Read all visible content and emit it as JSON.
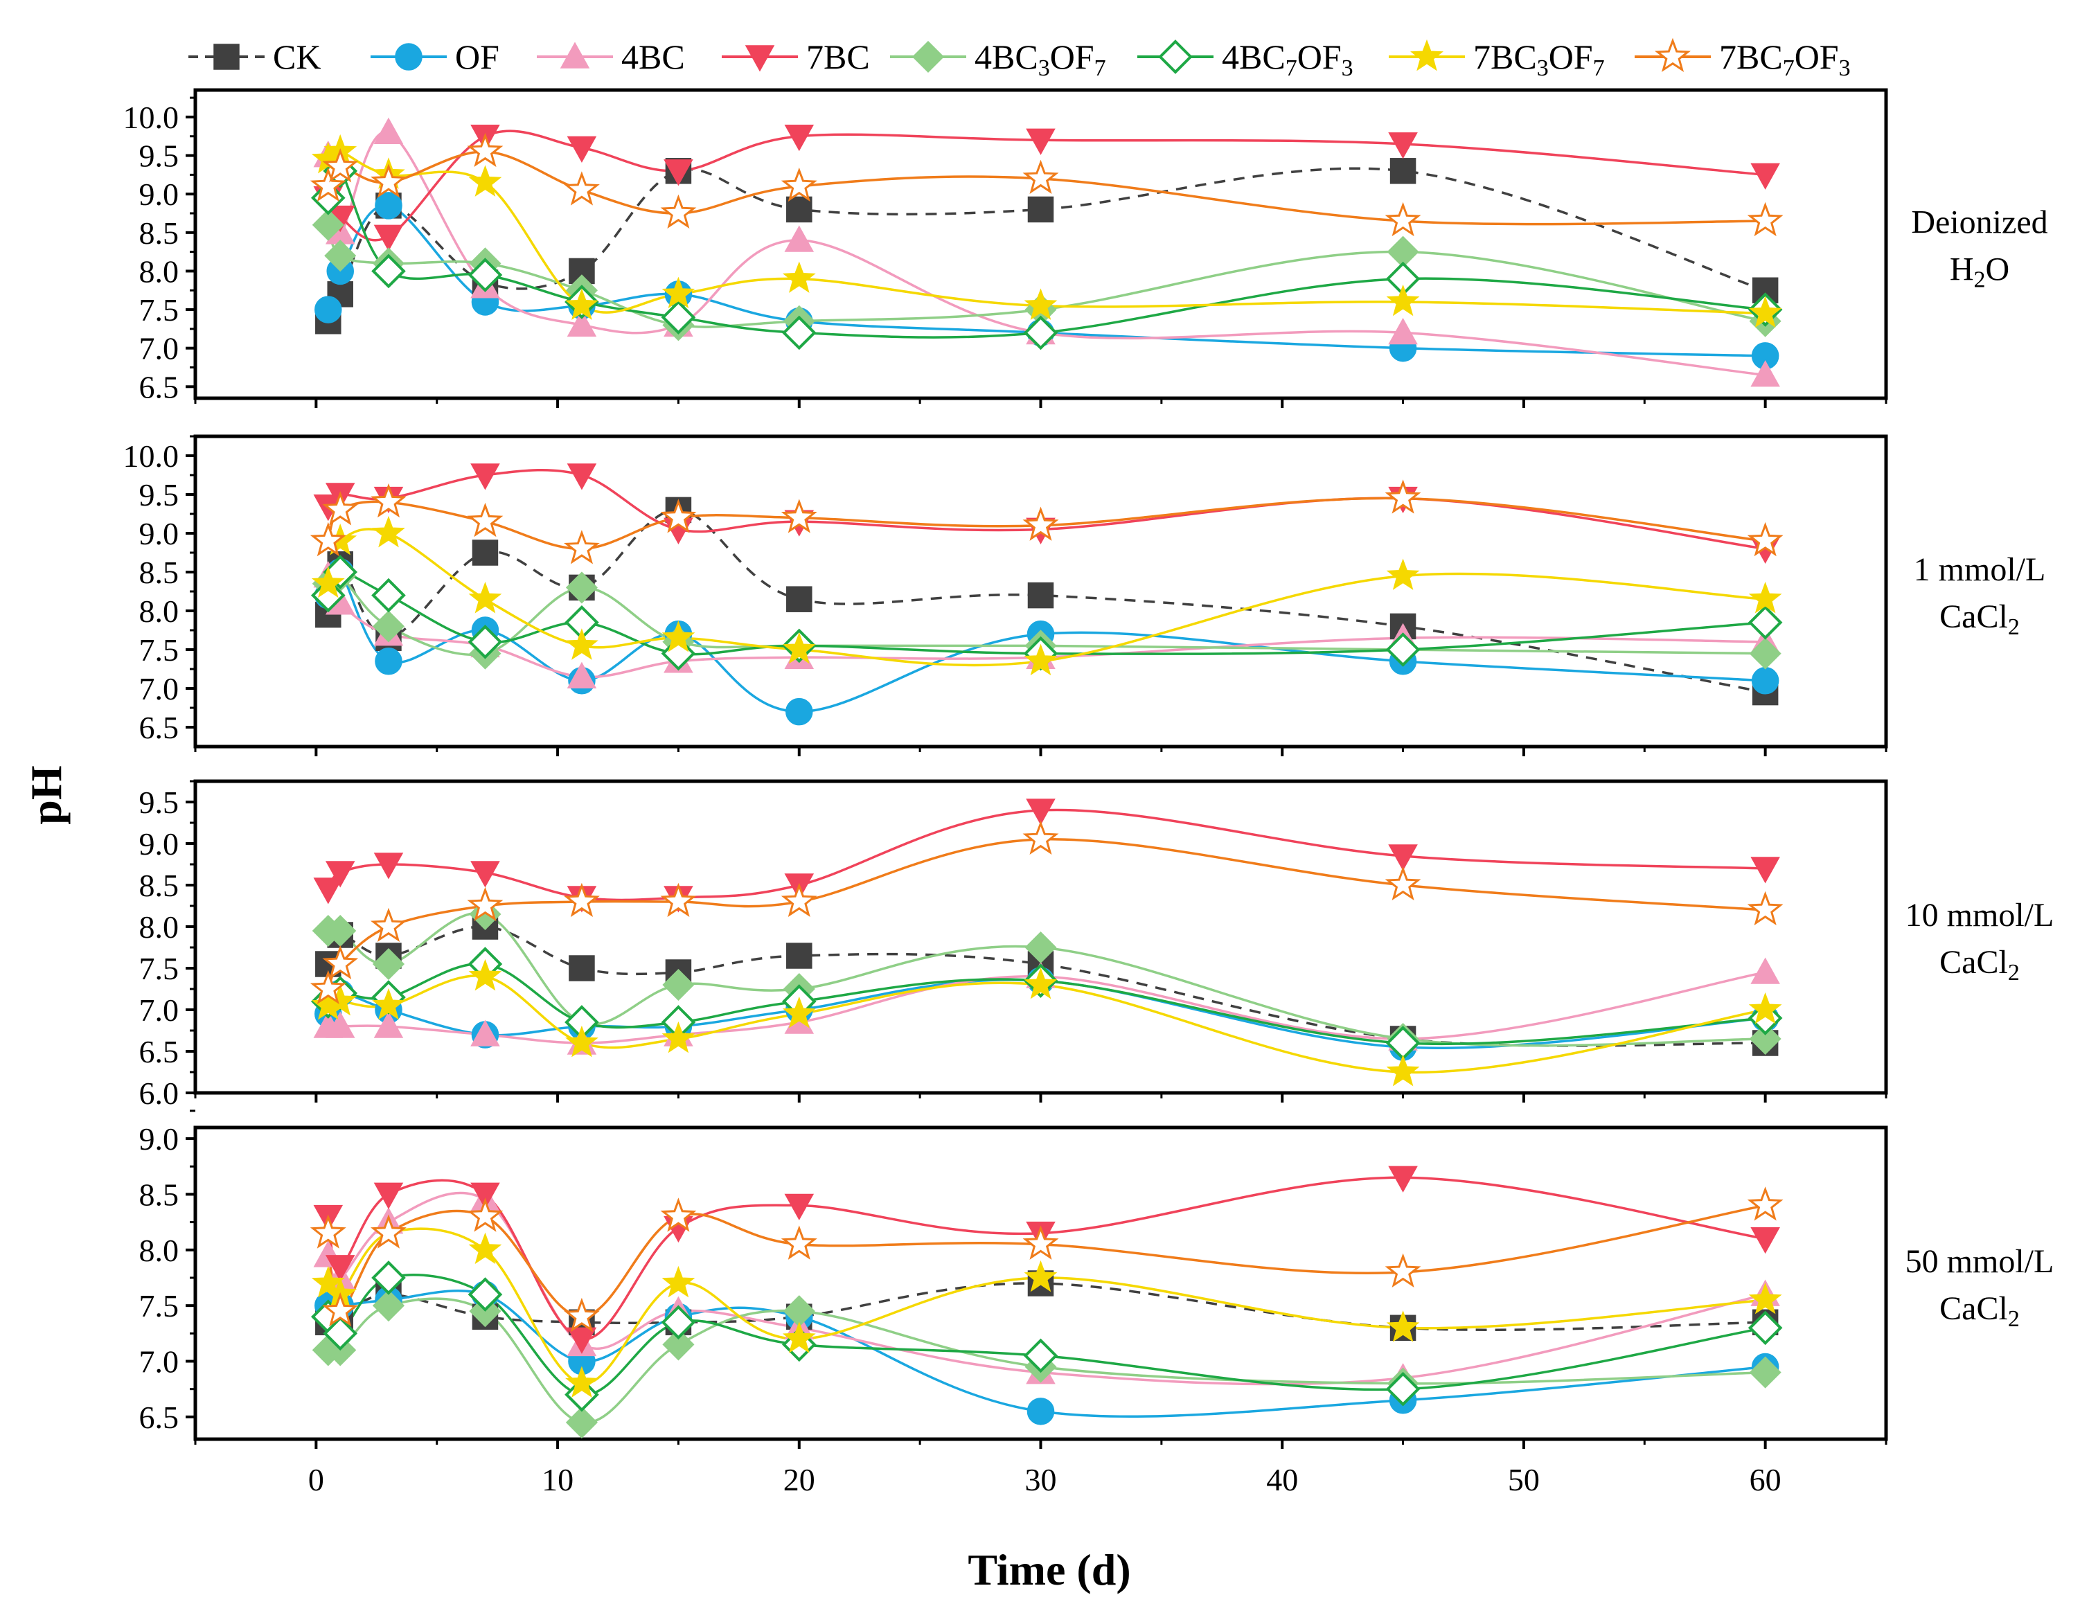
{
  "chart_data": {
    "type": "line",
    "xlabel": "Time (d)",
    "ylabel": "pH",
    "xlim": [
      -5,
      65
    ],
    "xticks": [
      0,
      10,
      20,
      30,
      40,
      50,
      60
    ],
    "x": [
      0.5,
      1,
      3,
      7,
      11,
      15,
      20,
      30,
      45,
      60
    ],
    "legend": [
      {
        "key": "CK",
        "label": "CK",
        "color": "#404040",
        "marker": "square",
        "dashed": true
      },
      {
        "key": "OF",
        "label": "OF",
        "color": "#1aa7e0",
        "marker": "circle"
      },
      {
        "key": "4BC",
        "label": "4BC",
        "color": "#f29bbd",
        "marker": "triangle-up"
      },
      {
        "key": "7BC",
        "label": "7BC",
        "color": "#f0435a",
        "marker": "triangle-down"
      },
      {
        "key": "4BC3OF7",
        "label": "4BC",
        "sub1": "3",
        "mid": "OF",
        "sub2": "7",
        "color": "#8fcf87",
        "marker": "diamond"
      },
      {
        "key": "4BC7OF3",
        "label": "4BC",
        "sub1": "7",
        "mid": "OF",
        "sub2": "3",
        "color": "#1ea845",
        "marker": "diamond-open"
      },
      {
        "key": "7BC3OF7",
        "label": "7BC",
        "sub1": "3",
        "mid": "OF",
        "sub2": "7",
        "color": "#f5d800",
        "marker": "star"
      },
      {
        "key": "7BC7OF3",
        "label": "7BC",
        "sub1": "7",
        "mid": "OF",
        "sub2": "3",
        "color": "#f07c1a",
        "marker": "star-open"
      }
    ],
    "panels": [
      {
        "label_lines": [
          "Deionized",
          "H"
        ],
        "label_sub": "2",
        "label_tail": "O",
        "ylim": [
          6.35,
          10.35
        ],
        "yticks": [
          6.5,
          7.0,
          7.5,
          8.0,
          8.5,
          9.0,
          9.5,
          10.0
        ],
        "ytick_labels": [
          "6.5",
          "7.0",
          "7.5",
          "8.0",
          "8.5",
          "9.0",
          "9.5",
          "10.0"
        ],
        "series": {
          "CK": [
            7.35,
            7.7,
            8.85,
            7.85,
            8.0,
            9.3,
            8.8,
            8.8,
            9.3,
            7.75
          ],
          "OF": [
            7.5,
            8.0,
            8.85,
            7.6,
            7.55,
            7.7,
            7.35,
            7.2,
            7.0,
            6.9
          ],
          "4BC": [
            9.5,
            8.5,
            9.8,
            7.8,
            7.3,
            7.3,
            8.4,
            7.2,
            7.2,
            6.65
          ],
          "7BC": [
            8.95,
            8.7,
            8.45,
            9.75,
            9.6,
            9.3,
            9.75,
            9.7,
            9.65,
            9.25
          ],
          "4BC3OF7": [
            8.6,
            8.2,
            8.1,
            8.1,
            7.75,
            7.3,
            7.35,
            7.5,
            8.25,
            7.35
          ],
          "4BC7OF3": [
            8.95,
            9.3,
            8.0,
            7.95,
            7.6,
            7.4,
            7.2,
            7.2,
            7.9,
            7.5
          ],
          "7BC3OF7": [
            9.45,
            9.55,
            9.25,
            9.15,
            7.55,
            7.7,
            7.9,
            7.55,
            7.6,
            7.45
          ],
          "7BC7OF3": [
            9.1,
            9.35,
            9.15,
            9.55,
            9.05,
            8.75,
            9.1,
            9.2,
            8.65,
            8.65
          ]
        }
      },
      {
        "label_lines": [
          "1 mmol/L",
          "CaCl"
        ],
        "label_sub": "2",
        "label_tail": "",
        "ylim": [
          6.25,
          10.25
        ],
        "yticks": [
          6.5,
          7.0,
          7.5,
          8.0,
          8.5,
          9.0,
          9.5,
          10.0
        ],
        "ytick_labels": [
          "6.5",
          "7.0",
          "7.5",
          "8.0",
          "8.5",
          "9.0",
          "9.5",
          "10.0"
        ],
        "series": {
          "CK": [
            7.95,
            8.6,
            7.65,
            8.75,
            8.3,
            9.3,
            8.15,
            8.2,
            7.8,
            6.95
          ],
          "OF": [
            8.2,
            8.5,
            7.35,
            7.75,
            7.1,
            7.7,
            6.7,
            7.7,
            7.35,
            7.1
          ],
          "4BC": [
            8.45,
            8.1,
            7.7,
            7.55,
            7.15,
            7.35,
            7.4,
            7.4,
            7.65,
            7.6
          ],
          "7BC": [
            9.35,
            9.5,
            9.45,
            9.75,
            9.75,
            9.05,
            9.15,
            9.05,
            9.45,
            8.8
          ],
          "4BC3OF7": [
            8.35,
            8.45,
            7.8,
            7.45,
            8.3,
            7.6,
            7.55,
            7.55,
            7.5,
            7.45
          ],
          "4BC7OF3": [
            8.2,
            8.5,
            8.2,
            7.6,
            7.85,
            7.45,
            7.55,
            7.45,
            7.5,
            7.85
          ],
          "7BC3OF7": [
            8.35,
            8.9,
            9.0,
            8.15,
            7.55,
            7.65,
            7.5,
            7.35,
            8.45,
            8.15
          ],
          "7BC7OF3": [
            8.9,
            9.3,
            9.4,
            9.15,
            8.8,
            9.2,
            9.2,
            9.1,
            9.45,
            8.9
          ]
        }
      },
      {
        "label_lines": [
          "10 mmol/L",
          "CaCl"
        ],
        "label_sub": "2",
        "label_tail": "",
        "ylim": [
          6.0,
          9.75
        ],
        "yticks": [
          6.0,
          6.5,
          7.0,
          7.5,
          8.0,
          8.5,
          9.0,
          9.5
        ],
        "ytick_labels": [
          "6.0",
          "6.5",
          "7.0",
          "7.5",
          "8.0",
          "8.5",
          "9.0",
          "9.5"
        ],
        "series": {
          "CK": [
            7.55,
            7.9,
            7.65,
            8.0,
            7.5,
            7.45,
            7.65,
            7.55,
            6.65,
            6.6
          ],
          "OF": [
            6.95,
            7.2,
            7.0,
            6.7,
            6.8,
            6.8,
            7.0,
            7.35,
            6.55,
            6.9
          ],
          "4BC": [
            6.8,
            6.8,
            6.8,
            6.7,
            6.6,
            6.7,
            6.85,
            7.4,
            6.65,
            7.45
          ],
          "7BC": [
            8.45,
            8.65,
            8.75,
            8.65,
            8.35,
            8.35,
            8.5,
            9.4,
            8.85,
            8.7
          ],
          "4BC3OF7": [
            7.95,
            7.95,
            7.55,
            8.15,
            6.85,
            7.3,
            7.25,
            7.75,
            6.65,
            6.65
          ],
          "4BC7OF3": [
            7.1,
            7.2,
            7.15,
            7.55,
            6.85,
            6.85,
            7.1,
            7.35,
            6.6,
            6.9
          ],
          "7BC3OF7": [
            7.05,
            7.1,
            7.05,
            7.4,
            6.6,
            6.65,
            6.95,
            7.3,
            6.25,
            7.0
          ],
          "7BC7OF3": [
            7.25,
            7.55,
            8.0,
            8.25,
            8.3,
            8.3,
            8.3,
            9.05,
            8.5,
            8.2
          ]
        }
      },
      {
        "label_lines": [
          "50 mmol/L",
          "CaCl"
        ],
        "label_sub": "2",
        "label_tail": "",
        "ylim": [
          6.3,
          9.1
        ],
        "yticks": [
          6.5,
          7.0,
          7.5,
          8.0,
          8.5,
          9.0
        ],
        "ytick_labels": [
          "6.5",
          "7.0",
          "7.5",
          "8.0",
          "8.5",
          "9.0"
        ],
        "series": {
          "CK": [
            7.35,
            7.4,
            7.6,
            7.4,
            7.35,
            7.35,
            7.4,
            7.7,
            7.3,
            7.35
          ],
          "OF": [
            7.5,
            7.5,
            7.55,
            7.6,
            7.0,
            7.4,
            7.4,
            6.55,
            6.65,
            6.95
          ],
          "4BC": [
            7.95,
            7.75,
            8.25,
            8.45,
            7.15,
            7.45,
            7.3,
            6.9,
            6.85,
            7.6
          ],
          "7BC": [
            8.3,
            7.85,
            8.5,
            8.5,
            7.2,
            8.2,
            8.4,
            8.15,
            8.65,
            8.1
          ],
          "4BC3OF7": [
            7.1,
            7.1,
            7.5,
            7.45,
            6.45,
            7.15,
            7.45,
            6.95,
            6.8,
            6.9
          ],
          "4BC7OF3": [
            7.4,
            7.25,
            7.75,
            7.6,
            6.7,
            7.35,
            7.15,
            7.05,
            6.75,
            7.3
          ],
          "7BC3OF7": [
            7.7,
            7.6,
            8.15,
            8.0,
            6.8,
            7.7,
            7.2,
            7.75,
            7.3,
            7.55
          ],
          "7BC7OF3": [
            8.15,
            7.45,
            8.15,
            8.3,
            7.4,
            8.3,
            8.05,
            8.05,
            7.8,
            8.4
          ]
        }
      }
    ]
  }
}
